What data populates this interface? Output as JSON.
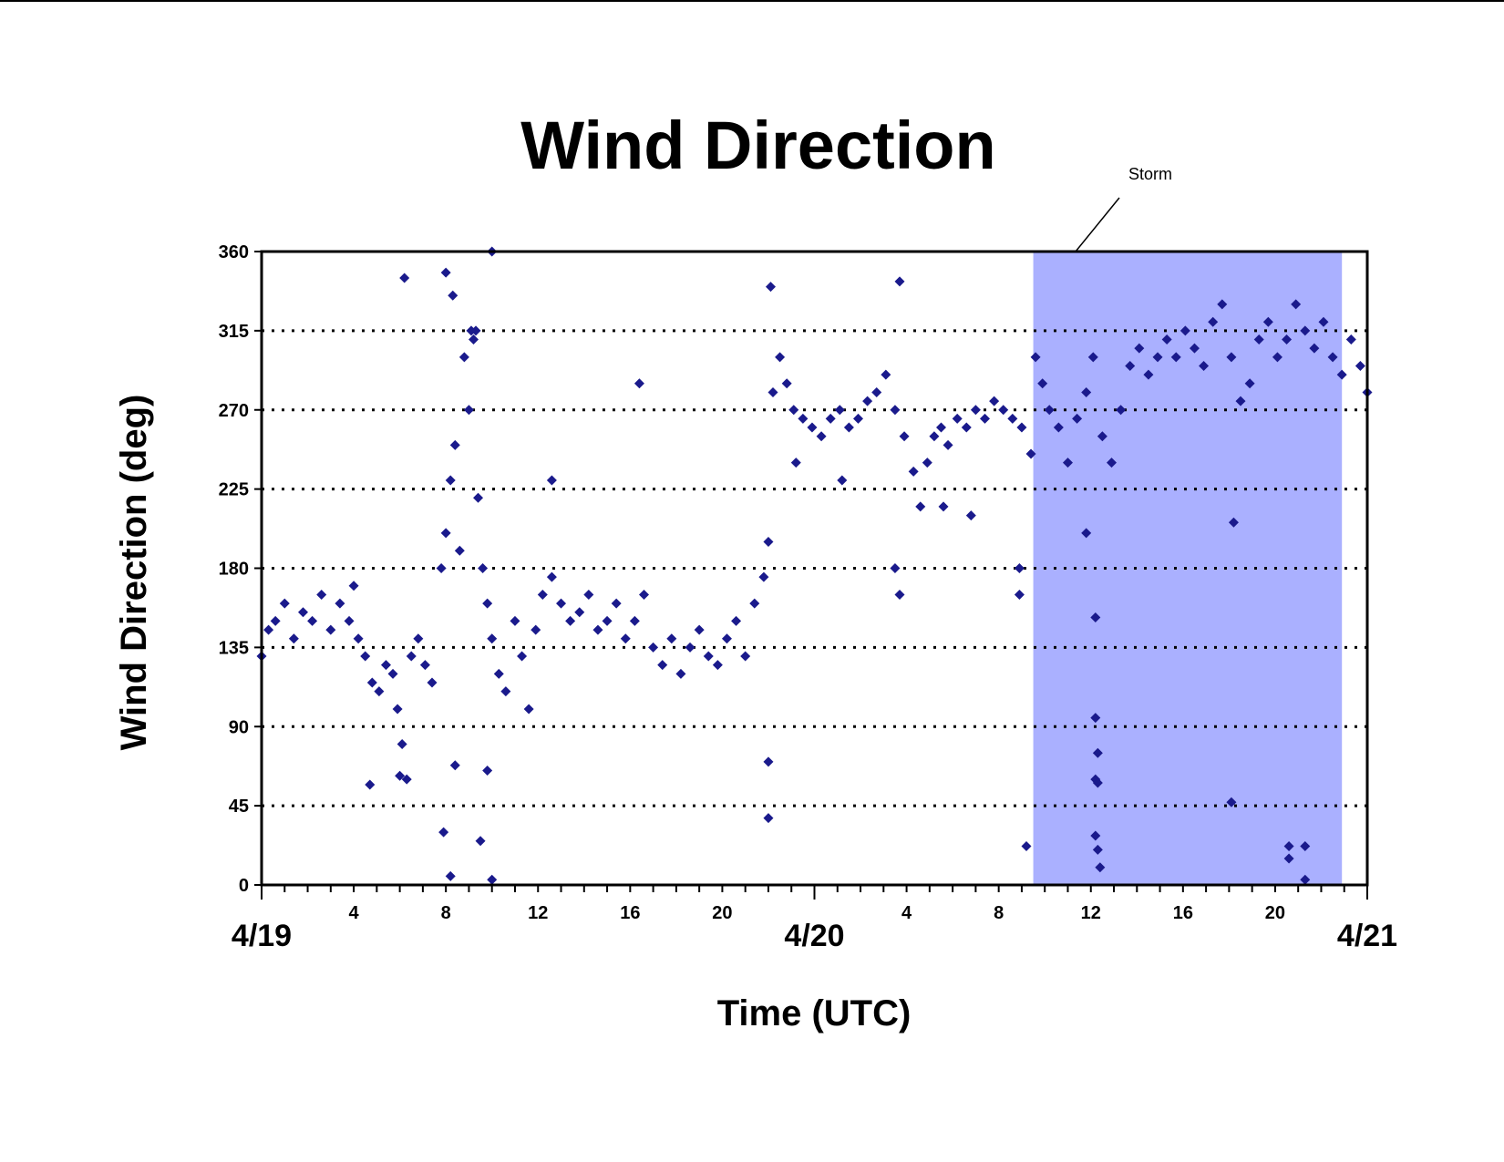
{
  "chart_data": {
    "type": "scatter",
    "title": "Wind Direction",
    "xlabel": "Time (UTC)",
    "ylabel": "Wind Direction (deg)",
    "ylim": [
      0,
      360
    ],
    "yticks": [
      "0",
      "45",
      "90",
      "135",
      "180",
      "225",
      "270",
      "315",
      "360"
    ],
    "xlim_hours": [
      0,
      48
    ],
    "x_hour_ticks": [
      {
        "h": 4,
        "label": "4"
      },
      {
        "h": 8,
        "label": "8"
      },
      {
        "h": 12,
        "label": "12"
      },
      {
        "h": 16,
        "label": "16"
      },
      {
        "h": 20,
        "label": "20"
      },
      {
        "h": 28,
        "label": "4"
      },
      {
        "h": 32,
        "label": "8"
      },
      {
        "h": 36,
        "label": "12"
      },
      {
        "h": 40,
        "label": "16"
      },
      {
        "h": 44,
        "label": "20"
      }
    ],
    "x_date_labels": [
      {
        "h": 0,
        "label": "4/19"
      },
      {
        "h": 24,
        "label": "4/20"
      },
      {
        "h": 48,
        "label": "4/21"
      }
    ],
    "grid": "horizontal dotted",
    "marker": "diamond",
    "colors": {
      "marker": "#1a1a8c",
      "storm_band": "#aab0ff",
      "axis": "#000000"
    },
    "annotation": {
      "text": "Storm",
      "shaded_region_hours": [
        33.5,
        46.9
      ]
    },
    "series": [
      {
        "points": [
          [
            0.0,
            130
          ],
          [
            0.3,
            145
          ],
          [
            0.6,
            150
          ],
          [
            1.0,
            160
          ],
          [
            1.4,
            140
          ],
          [
            1.8,
            155
          ],
          [
            2.2,
            150
          ],
          [
            2.6,
            165
          ],
          [
            3.0,
            145
          ],
          [
            3.4,
            160
          ],
          [
            3.8,
            150
          ],
          [
            4.0,
            170
          ],
          [
            4.2,
            140
          ],
          [
            4.5,
            130
          ],
          [
            4.8,
            115
          ],
          [
            5.1,
            110
          ],
          [
            5.4,
            125
          ],
          [
            5.7,
            120
          ],
          [
            5.9,
            100
          ],
          [
            6.1,
            80
          ],
          [
            6.3,
            60
          ],
          [
            6.5,
            130
          ],
          [
            6.8,
            140
          ],
          [
            7.1,
            125
          ],
          [
            7.4,
            115
          ],
          [
            7.8,
            180
          ],
          [
            8.0,
            200
          ],
          [
            8.2,
            230
          ],
          [
            8.4,
            250
          ],
          [
            8.6,
            190
          ],
          [
            8.8,
            300
          ],
          [
            9.0,
            270
          ],
          [
            9.2,
            310
          ],
          [
            9.4,
            220
          ],
          [
            9.6,
            180
          ],
          [
            9.8,
            160
          ],
          [
            10.0,
            140
          ],
          [
            10.3,
            120
          ],
          [
            10.6,
            110
          ],
          [
            11.0,
            150
          ],
          [
            11.3,
            130
          ],
          [
            11.6,
            100
          ],
          [
            11.9,
            145
          ],
          [
            12.2,
            165
          ],
          [
            12.6,
            175
          ],
          [
            13.0,
            160
          ],
          [
            13.4,
            150
          ],
          [
            13.8,
            155
          ],
          [
            14.2,
            165
          ],
          [
            14.6,
            145
          ],
          [
            15.0,
            150
          ],
          [
            15.4,
            160
          ],
          [
            15.8,
            140
          ],
          [
            16.2,
            150
          ],
          [
            16.6,
            165
          ],
          [
            17.0,
            135
          ],
          [
            17.4,
            125
          ],
          [
            17.8,
            140
          ],
          [
            18.2,
            120
          ],
          [
            18.6,
            135
          ],
          [
            19.0,
            145
          ],
          [
            19.4,
            130
          ],
          [
            19.8,
            125
          ],
          [
            20.2,
            140
          ],
          [
            20.6,
            150
          ],
          [
            21.0,
            130
          ],
          [
            21.4,
            160
          ],
          [
            21.8,
            175
          ],
          [
            22.0,
            195
          ],
          [
            22.2,
            280
          ],
          [
            22.5,
            300
          ],
          [
            22.8,
            285
          ],
          [
            23.1,
            270
          ],
          [
            23.5,
            265
          ],
          [
            23.9,
            260
          ],
          [
            24.3,
            255
          ],
          [
            24.7,
            265
          ],
          [
            25.1,
            270
          ],
          [
            25.5,
            260
          ],
          [
            25.9,
            265
          ],
          [
            26.3,
            275
          ],
          [
            26.7,
            280
          ],
          [
            27.1,
            290
          ],
          [
            27.5,
            270
          ],
          [
            27.9,
            255
          ],
          [
            28.3,
            235
          ],
          [
            28.6,
            215
          ],
          [
            28.9,
            240
          ],
          [
            29.2,
            255
          ],
          [
            29.5,
            260
          ],
          [
            29.8,
            250
          ],
          [
            30.2,
            265
          ],
          [
            30.6,
            260
          ],
          [
            31.0,
            270
          ],
          [
            31.4,
            265
          ],
          [
            31.8,
            275
          ],
          [
            32.2,
            270
          ],
          [
            32.6,
            265
          ],
          [
            33.0,
            260
          ],
          [
            33.4,
            245
          ],
          [
            33.6,
            300
          ],
          [
            33.9,
            285
          ],
          [
            34.2,
            270
          ],
          [
            34.6,
            260
          ],
          [
            35.0,
            240
          ],
          [
            35.4,
            265
          ],
          [
            35.8,
            280
          ],
          [
            36.1,
            300
          ],
          [
            36.5,
            255
          ],
          [
            36.9,
            240
          ],
          [
            37.3,
            270
          ],
          [
            37.7,
            295
          ],
          [
            38.1,
            305
          ],
          [
            38.5,
            290
          ],
          [
            38.9,
            300
          ],
          [
            39.3,
            310
          ],
          [
            39.7,
            300
          ],
          [
            40.1,
            315
          ],
          [
            40.5,
            305
          ],
          [
            40.9,
            295
          ],
          [
            41.3,
            320
          ],
          [
            41.7,
            330
          ],
          [
            42.1,
            300
          ],
          [
            42.5,
            275
          ],
          [
            42.9,
            285
          ],
          [
            43.3,
            310
          ],
          [
            43.7,
            320
          ],
          [
            44.1,
            300
          ],
          [
            44.5,
            310
          ],
          [
            44.9,
            330
          ],
          [
            45.3,
            315
          ],
          [
            45.7,
            305
          ],
          [
            46.1,
            320
          ],
          [
            46.5,
            300
          ],
          [
            46.9,
            290
          ],
          [
            47.3,
            310
          ],
          [
            47.7,
            295
          ],
          [
            48.0,
            280
          ],
          [
            6.2,
            345
          ],
          [
            8.0,
            348
          ],
          [
            8.3,
            335
          ],
          [
            10.0,
            360
          ],
          [
            16.4,
            285
          ],
          [
            9.3,
            315
          ],
          [
            9.1,
            315
          ],
          [
            22.1,
            340
          ],
          [
            27.7,
            343
          ],
          [
            12.6,
            230
          ],
          [
            7.9,
            30
          ],
          [
            8.2,
            5
          ],
          [
            9.5,
            25
          ],
          [
            10.0,
            3
          ],
          [
            4.7,
            57
          ],
          [
            6.0,
            62
          ],
          [
            9.8,
            65
          ],
          [
            8.4,
            68
          ],
          [
            22.0,
            70
          ],
          [
            22.0,
            38
          ],
          [
            33.2,
            22
          ],
          [
            36.3,
            20
          ],
          [
            36.4,
            10
          ],
          [
            36.2,
            28
          ],
          [
            36.2,
            95
          ],
          [
            36.3,
            75
          ],
          [
            36.2,
            60
          ],
          [
            36.3,
            58
          ],
          [
            36.2,
            152
          ],
          [
            35.8,
            200
          ],
          [
            42.2,
            206
          ],
          [
            42.1,
            47
          ],
          [
            44.6,
            22
          ],
          [
            44.6,
            15
          ],
          [
            45.3,
            22
          ],
          [
            45.3,
            3
          ],
          [
            32.9,
            165
          ],
          [
            32.9,
            180
          ],
          [
            29.6,
            215
          ],
          [
            30.8,
            210
          ],
          [
            27.7,
            165
          ],
          [
            27.5,
            180
          ],
          [
            23.2,
            240
          ],
          [
            25.2,
            230
          ]
        ]
      }
    ]
  }
}
